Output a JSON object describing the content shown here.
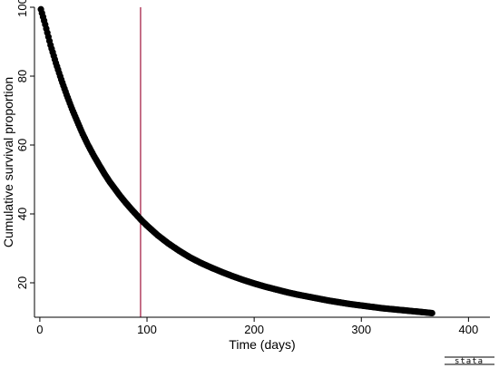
{
  "chart_data": {
    "type": "scatter",
    "title": "",
    "xlabel": "Time (days)",
    "ylabel": "Cumulative survival proportion",
    "xlim": [
      -5,
      420
    ],
    "ylim": [
      10,
      100
    ],
    "x_ticks": [
      0,
      100,
      200,
      300,
      400
    ],
    "y_ticks": [
      20,
      40,
      60,
      80,
      100
    ],
    "grid": false,
    "legend": "none",
    "marker_color": "#000000",
    "reference_line": {
      "axis": "x",
      "x": 94,
      "color": "#a0133a"
    },
    "series": [
      {
        "x": [
          1,
          5,
          10,
          15,
          20,
          25,
          30,
          35,
          40,
          45,
          50,
          55,
          60,
          65,
          70,
          75,
          80,
          85,
          90,
          95,
          100,
          110,
          120,
          130,
          140,
          150,
          160,
          170,
          180,
          190,
          200,
          210,
          220,
          230,
          240,
          250,
          260,
          270,
          280,
          290,
          300,
          310,
          320,
          330,
          340,
          350,
          360,
          366
        ],
        "y": [
          99.4,
          95.0,
          89.0,
          83.8,
          79.0,
          74.6,
          70.5,
          66.8,
          63.2,
          60.0,
          57.1,
          54.4,
          51.8,
          49.4,
          47.3,
          45.2,
          43.3,
          41.5,
          39.8,
          38.1,
          36.6,
          33.8,
          31.4,
          29.3,
          27.4,
          25.8,
          24.4,
          23.1,
          21.9,
          20.8,
          19.8,
          18.9,
          18.1,
          17.3,
          16.6,
          16.0,
          15.4,
          14.8,
          14.3,
          13.8,
          13.4,
          13.0,
          12.6,
          12.3,
          12.0,
          11.7,
          11.4,
          11.2
        ]
      }
    ]
  },
  "branding": {
    "label": "stata"
  }
}
